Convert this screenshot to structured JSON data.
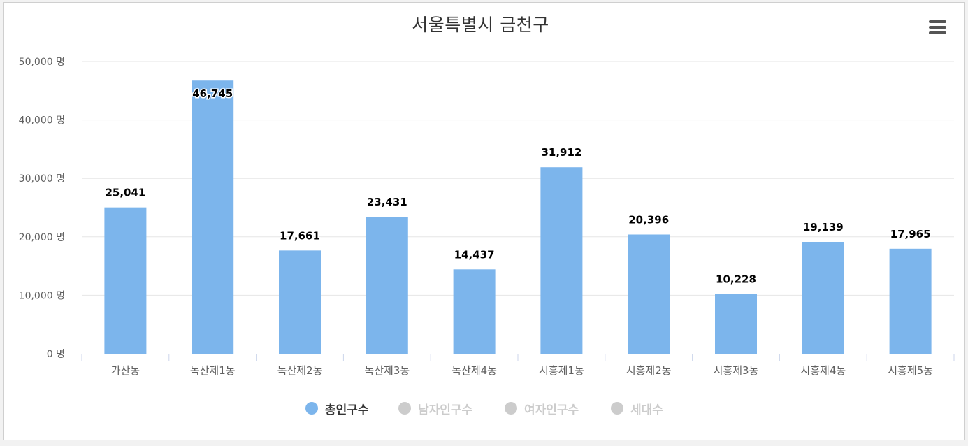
{
  "chart_data": {
    "type": "bar",
    "title": "서울특별시 금천구",
    "categories": [
      "가산동",
      "독산제1동",
      "독산제2동",
      "독산제3동",
      "독산제4동",
      "시흥제1동",
      "시흥제2동",
      "시흥제3동",
      "시흥제4동",
      "시흥제5동"
    ],
    "series": [
      {
        "name": "총인구수",
        "values": [
          25041,
          46745,
          17661,
          23431,
          14437,
          31912,
          20396,
          10228,
          19139,
          17965
        ],
        "visible": true
      }
    ],
    "data_labels": [
      "25,041",
      "46,745",
      "17,661",
      "23,431",
      "14,437",
      "31,912",
      "20,396",
      "10,228",
      "19,139",
      "17,965"
    ],
    "y_ticks": [
      "0 명",
      "10,000 명",
      "20,000 명",
      "30,000 명",
      "40,000 명",
      "50,000 명"
    ],
    "ylim": [
      0,
      50000
    ],
    "grid": true,
    "legend_position": "bottom-center",
    "bar_color": "#7cb5ec"
  },
  "legend": {
    "items": [
      {
        "label": "총인구수",
        "active": true,
        "color": "#7cb5ec"
      },
      {
        "label": "남자인구수",
        "active": false,
        "color": "#cccccc"
      },
      {
        "label": "여자인구수",
        "active": false,
        "color": "#cccccc"
      },
      {
        "label": "세대수",
        "active": false,
        "color": "#cccccc"
      }
    ]
  },
  "menu": {
    "icon": "hamburger-menu-icon"
  }
}
